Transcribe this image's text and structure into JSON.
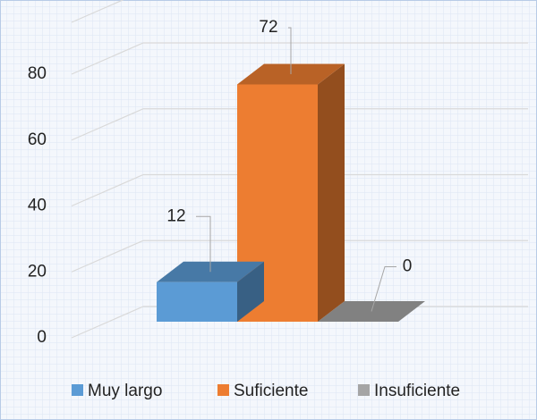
{
  "chart_data": {
    "type": "bar3d",
    "categories": [
      null
    ],
    "series": [
      {
        "name": "Muy largo",
        "color": "#5b9bd5",
        "values": [
          12
        ]
      },
      {
        "name": "Suficiente",
        "color": "#ed7d31",
        "values": [
          72
        ]
      },
      {
        "name": "Insuficiente",
        "color": "#a5a5a5",
        "values": [
          0
        ]
      }
    ],
    "ylim": [
      0,
      80
    ],
    "yticks": [
      0,
      20,
      40,
      60,
      80
    ],
    "grid": true,
    "legend": "bottom"
  }
}
